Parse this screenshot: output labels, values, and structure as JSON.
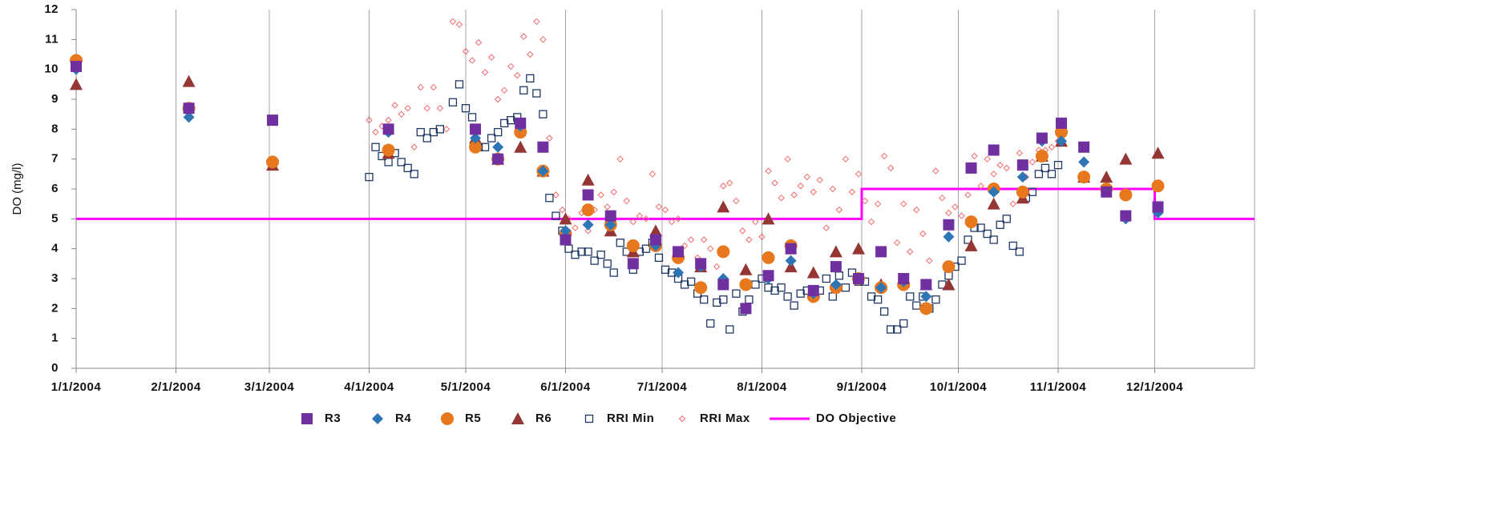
{
  "chart_data": {
    "type": "scatter",
    "y_label": "DO (mg/l)",
    "ylim": [
      0,
      12
    ],
    "yticks": [
      0,
      1,
      2,
      3,
      4,
      5,
      6,
      7,
      8,
      9,
      10,
      11,
      12
    ],
    "xlim": [
      "1/1/2004",
      "1/1/2005"
    ],
    "xticks": [
      "1/1/2004",
      "2/1/2004",
      "3/1/2004",
      "4/1/2004",
      "5/1/2004",
      "6/1/2004",
      "7/1/2004",
      "8/1/2004",
      "9/1/2004",
      "10/1/2004",
      "11/1/2004",
      "12/1/2004"
    ],
    "x_grid": true,
    "legend": "bottom",
    "series": [
      {
        "name": "R3",
        "marker": "square",
        "color": "#7030a0",
        "x": [
          "1/1/2004",
          "2/5/2004",
          "3/2/2004",
          "4/7/2004",
          "5/4/2004",
          "5/11/2004",
          "5/18/2004",
          "5/25/2004",
          "6/1/2004",
          "6/8/2004",
          "6/15/2004",
          "6/22/2004",
          "6/29/2004",
          "7/6/2004",
          "7/13/2004",
          "7/20/2004",
          "7/27/2004",
          "8/3/2004",
          "8/10/2004",
          "8/17/2004",
          "8/24/2004",
          "8/31/2004",
          "9/7/2004",
          "9/14/2004",
          "9/21/2004",
          "9/28/2004",
          "10/5/2004",
          "10/12/2004",
          "10/21/2004",
          "10/27/2004",
          "11/2/2004",
          "11/9/2004",
          "11/16/2004",
          "11/22/2004",
          "12/2/2004"
        ],
        "values": [
          10.1,
          8.7,
          8.3,
          8.0,
          8.0,
          7.0,
          8.2,
          7.4,
          4.3,
          5.8,
          5.1,
          3.5,
          4.3,
          3.9,
          3.5,
          2.8,
          2.0,
          3.1,
          4.0,
          2.6,
          3.4,
          3.0,
          3.9,
          3.0,
          2.8,
          4.8,
          6.7,
          7.3,
          6.8,
          7.7,
          8.2,
          7.4,
          5.9,
          5.1,
          5.4
        ]
      },
      {
        "name": "R4",
        "marker": "diamond",
        "color": "#2e75b6",
        "x": [
          "1/1/2004",
          "2/5/2004",
          "4/7/2004",
          "5/4/2004",
          "5/11/2004",
          "5/18/2004",
          "5/25/2004",
          "6/1/2004",
          "6/8/2004",
          "6/15/2004",
          "6/22/2004",
          "6/29/2004",
          "7/6/2004",
          "7/13/2004",
          "7/20/2004",
          "7/27/2004",
          "8/3/2004",
          "8/10/2004",
          "8/17/2004",
          "8/24/2004",
          "8/31/2004",
          "9/7/2004",
          "9/14/2004",
          "9/21/2004",
          "9/28/2004",
          "10/5/2004",
          "10/12/2004",
          "10/21/2004",
          "10/27/2004",
          "11/2/2004",
          "11/9/2004",
          "11/16/2004",
          "11/22/2004",
          "12/2/2004"
        ],
        "values": [
          10.0,
          8.4,
          7.9,
          7.7,
          7.4,
          8.1,
          6.6,
          4.6,
          4.8,
          4.8,
          3.5,
          4.1,
          3.2,
          3.4,
          3.0,
          2.0,
          3.0,
          3.6,
          2.5,
          2.8,
          3.0,
          2.7,
          2.9,
          2.4,
          4.4,
          6.7,
          5.9,
          6.4,
          7.6,
          7.6,
          6.9,
          5.9,
          5.0,
          5.2
        ]
      },
      {
        "name": "R5",
        "marker": "circle",
        "color": "#e8781e",
        "x": [
          "1/1/2004",
          "2/5/2004",
          "3/2/2004",
          "4/7/2004",
          "5/4/2004",
          "5/11/2004",
          "5/18/2004",
          "5/25/2004",
          "6/1/2004",
          "6/8/2004",
          "6/15/2004",
          "6/22/2004",
          "6/29/2004",
          "7/6/2004",
          "7/13/2004",
          "7/20/2004",
          "7/27/2004",
          "8/3/2004",
          "8/10/2004",
          "8/17/2004",
          "8/24/2004",
          "8/31/2004",
          "9/7/2004",
          "9/14/2004",
          "9/21/2004",
          "9/28/2004",
          "10/5/2004",
          "10/12/2004",
          "10/21/2004",
          "10/27/2004",
          "11/2/2004",
          "11/9/2004",
          "11/16/2004",
          "11/22/2004",
          "12/2/2004"
        ],
        "values": [
          10.3,
          8.7,
          6.9,
          7.3,
          7.4,
          7.0,
          7.9,
          6.6,
          4.5,
          5.3,
          4.8,
          4.1,
          4.1,
          3.7,
          2.7,
          3.9,
          2.8,
          3.7,
          4.1,
          2.4,
          2.7,
          3.0,
          2.7,
          2.8,
          2.0,
          3.4,
          4.9,
          6.0,
          5.9,
          7.1,
          7.9,
          6.4,
          6.0,
          5.8,
          6.1
        ]
      },
      {
        "name": "R6",
        "marker": "triangle",
        "color": "#943634",
        "x": [
          "1/1/2004",
          "2/5/2004",
          "3/2/2004",
          "4/7/2004",
          "5/4/2004",
          "5/11/2004",
          "5/18/2004",
          "5/25/2004",
          "6/1/2004",
          "6/8/2004",
          "6/15/2004",
          "6/22/2004",
          "6/29/2004",
          "7/13/2004",
          "7/20/2004",
          "7/27/2004",
          "8/3/2004",
          "8/10/2004",
          "8/17/2004",
          "8/24/2004",
          "8/31/2004",
          "9/7/2004",
          "9/14/2004",
          "9/21/2004",
          "9/28/2004",
          "10/5/2004",
          "10/12/2004",
          "10/21/2004",
          "10/27/2004",
          "11/2/2004",
          "11/9/2004",
          "11/16/2004",
          "11/22/2004",
          "12/2/2004"
        ],
        "values": [
          9.5,
          9.6,
          6.8,
          7.2,
          7.7,
          7.0,
          7.4,
          6.6,
          5.0,
          6.3,
          4.6,
          3.9,
          4.6,
          3.4,
          5.4,
          3.3,
          5.0,
          3.4,
          3.2,
          3.9,
          4.0,
          2.8,
          2.9,
          2.8,
          2.8,
          4.1,
          5.5,
          5.7,
          7.1,
          7.6,
          6.4,
          6.4,
          7.0,
          7.2
        ]
      },
      {
        "name": "RRI Min",
        "marker": "open-square",
        "color": "#1f3864",
        "x": [
          "4/1/2004",
          "4/3/2004",
          "4/5/2004",
          "4/7/2004",
          "4/9/2004",
          "4/11/2004",
          "4/13/2004",
          "4/15/2004",
          "4/17/2004",
          "4/19/2004",
          "4/21/2004",
          "4/23/2004",
          "4/27/2004",
          "4/29/2004",
          "5/1/2004",
          "5/3/2004",
          "5/5/2004",
          "5/7/2004",
          "5/9/2004",
          "5/11/2004",
          "5/13/2004",
          "5/15/2004",
          "5/17/2004",
          "5/19/2004",
          "5/21/2004",
          "5/23/2004",
          "5/25/2004",
          "5/27/2004",
          "5/29/2004",
          "5/31/2004",
          "6/2/2004",
          "6/4/2004",
          "6/6/2004",
          "6/8/2004",
          "6/10/2004",
          "6/12/2004",
          "6/14/2004",
          "6/16/2004",
          "6/18/2004",
          "6/20/2004",
          "6/22/2004",
          "6/24/2004",
          "6/26/2004",
          "6/28/2004",
          "6/30/2004",
          "7/2/2004",
          "7/4/2004",
          "7/6/2004",
          "7/8/2004",
          "7/10/2004",
          "7/12/2004",
          "7/14/2004",
          "7/16/2004",
          "7/18/2004",
          "7/20/2004",
          "7/22/2004",
          "7/24/2004",
          "7/26/2004",
          "7/28/2004",
          "7/30/2004",
          "8/1/2004",
          "8/3/2004",
          "8/5/2004",
          "8/7/2004",
          "8/9/2004",
          "8/11/2004",
          "8/13/2004",
          "8/15/2004",
          "8/17/2004",
          "8/19/2004",
          "8/21/2004",
          "8/23/2004",
          "8/25/2004",
          "8/27/2004",
          "8/29/2004",
          "8/31/2004",
          "9/2/2004",
          "9/4/2004",
          "9/6/2004",
          "9/8/2004",
          "9/10/2004",
          "9/12/2004",
          "9/14/2004",
          "9/16/2004",
          "9/18/2004",
          "9/20/2004",
          "9/22/2004",
          "9/24/2004",
          "9/26/2004",
          "9/28/2004",
          "9/30/2004",
          "10/2/2004",
          "10/4/2004",
          "10/6/2004",
          "10/8/2004",
          "10/10/2004",
          "10/12/2004",
          "10/14/2004",
          "10/16/2004",
          "10/18/2004",
          "10/20/2004",
          "10/22/2004",
          "10/24/2004",
          "10/26/2004",
          "10/28/2004",
          "10/30/2004",
          "11/1/2004"
        ],
        "values": [
          6.4,
          7.4,
          7.1,
          6.9,
          7.2,
          6.9,
          6.7,
          6.5,
          7.9,
          7.7,
          7.9,
          8.0,
          8.9,
          9.5,
          8.7,
          8.4,
          7.4,
          7.4,
          7.7,
          7.9,
          8.2,
          8.3,
          8.4,
          9.3,
          9.7,
          9.2,
          8.5,
          5.7,
          5.1,
          4.6,
          4.0,
          3.8,
          3.9,
          3.9,
          3.6,
          3.8,
          3.5,
          3.2,
          4.2,
          3.9,
          3.3,
          3.9,
          4.0,
          4.2,
          3.7,
          3.3,
          3.2,
          3.0,
          2.8,
          2.9,
          2.5,
          2.3,
          1.5,
          2.2,
          2.3,
          1.3,
          2.5,
          1.9,
          2.3,
          2.8,
          3.0,
          2.7,
          2.6,
          2.7,
          2.4,
          2.1,
          2.5,
          2.6,
          2.5,
          2.6,
          3.0,
          2.4,
          3.1,
          2.7,
          3.2,
          2.9,
          2.9,
          2.4,
          2.3,
          1.9,
          1.3,
          1.3,
          1.5,
          2.4,
          2.1,
          2.4,
          2.0,
          2.3,
          2.8,
          3.1,
          3.4,
          3.6,
          4.3,
          4.7,
          4.7,
          4.5,
          4.3,
          4.8,
          5.0,
          4.1,
          3.9,
          5.7,
          5.9,
          6.5,
          6.7,
          6.5,
          6.8
        ]
      },
      {
        "name": "RRI Max",
        "marker": "open-diamond",
        "color": "#f26b6b",
        "x": [
          "4/1/2004",
          "4/3/2004",
          "4/5/2004",
          "4/7/2004",
          "4/9/2004",
          "4/11/2004",
          "4/13/2004",
          "4/15/2004",
          "4/17/2004",
          "4/19/2004",
          "4/21/2004",
          "4/23/2004",
          "4/25/2004",
          "4/27/2004",
          "4/29/2004",
          "5/1/2004",
          "5/3/2004",
          "5/5/2004",
          "5/7/2004",
          "5/9/2004",
          "5/11/2004",
          "5/13/2004",
          "5/15/2004",
          "5/17/2004",
          "5/19/2004",
          "5/21/2004",
          "5/23/2004",
          "5/25/2004",
          "5/27/2004",
          "5/29/2004",
          "5/31/2004",
          "6/2/2004",
          "6/4/2004",
          "6/6/2004",
          "6/8/2004",
          "6/10/2004",
          "6/12/2004",
          "6/14/2004",
          "6/16/2004",
          "6/18/2004",
          "6/20/2004",
          "6/22/2004",
          "6/24/2004",
          "6/26/2004",
          "6/28/2004",
          "6/30/2004",
          "7/2/2004",
          "7/4/2004",
          "7/6/2004",
          "7/8/2004",
          "7/10/2004",
          "7/12/2004",
          "7/14/2004",
          "7/16/2004",
          "7/18/2004",
          "7/20/2004",
          "7/22/2004",
          "7/24/2004",
          "7/26/2004",
          "7/28/2004",
          "7/30/2004",
          "8/1/2004",
          "8/3/2004",
          "8/5/2004",
          "8/7/2004",
          "8/9/2004",
          "8/11/2004",
          "8/13/2004",
          "8/15/2004",
          "8/17/2004",
          "8/19/2004",
          "8/21/2004",
          "8/23/2004",
          "8/25/2004",
          "8/27/2004",
          "8/29/2004",
          "8/31/2004",
          "9/2/2004",
          "9/4/2004",
          "9/6/2004",
          "9/8/2004",
          "9/10/2004",
          "9/12/2004",
          "9/14/2004",
          "9/16/2004",
          "9/18/2004",
          "9/20/2004",
          "9/22/2004",
          "9/24/2004",
          "9/26/2004",
          "9/28/2004",
          "9/30/2004",
          "10/2/2004",
          "10/4/2004",
          "10/6/2004",
          "10/8/2004",
          "10/10/2004",
          "10/12/2004",
          "10/14/2004",
          "10/16/2004",
          "10/18/2004",
          "10/20/2004",
          "10/22/2004",
          "10/24/2004",
          "10/26/2004",
          "10/28/2004",
          "10/30/2004",
          "11/1/2004"
        ],
        "values": [
          8.3,
          7.9,
          8.1,
          8.3,
          8.8,
          8.5,
          8.7,
          7.4,
          9.4,
          8.7,
          9.4,
          8.7,
          8.0,
          11.6,
          11.5,
          10.6,
          10.3,
          10.9,
          9.9,
          10.4,
          9.0,
          9.3,
          10.1,
          9.8,
          11.1,
          10.5,
          11.6,
          11.0,
          7.7,
          5.8,
          5.3,
          5.0,
          4.7,
          5.2,
          4.6,
          5.3,
          5.8,
          5.4,
          5.9,
          7.0,
          5.6,
          4.9,
          5.1,
          5.0,
          6.5,
          5.4,
          5.3,
          4.9,
          5.0,
          4.1,
          4.3,
          3.7,
          4.3,
          4.0,
          3.4,
          6.1,
          6.2,
          5.6,
          4.6,
          4.3,
          4.9,
          4.4,
          6.6,
          6.2,
          5.7,
          7.0,
          5.8,
          6.1,
          6.4,
          5.9,
          6.3,
          4.7,
          6.0,
          5.3,
          7.0,
          5.9,
          6.5,
          5.6,
          4.9,
          5.5,
          7.1,
          6.7,
          4.2,
          5.5,
          3.9,
          5.3,
          4.5,
          3.6,
          6.6,
          5.7,
          5.2,
          5.4,
          5.1,
          5.8,
          7.1,
          6.1,
          7.0,
          6.5,
          6.8,
          6.7,
          5.5,
          7.2,
          6.4,
          6.9,
          7.3,
          7.3,
          7.4,
          7.6
        ]
      },
      {
        "name": "DO Objective",
        "type": "line",
        "color": "#ff00ff",
        "x": [
          "1/1/2004",
          "9/1/2004",
          "9/1/2004",
          "12/1/2004",
          "12/1/2004",
          "1/1/2005"
        ],
        "values": [
          5,
          5,
          6,
          6,
          5,
          5
        ]
      }
    ]
  }
}
